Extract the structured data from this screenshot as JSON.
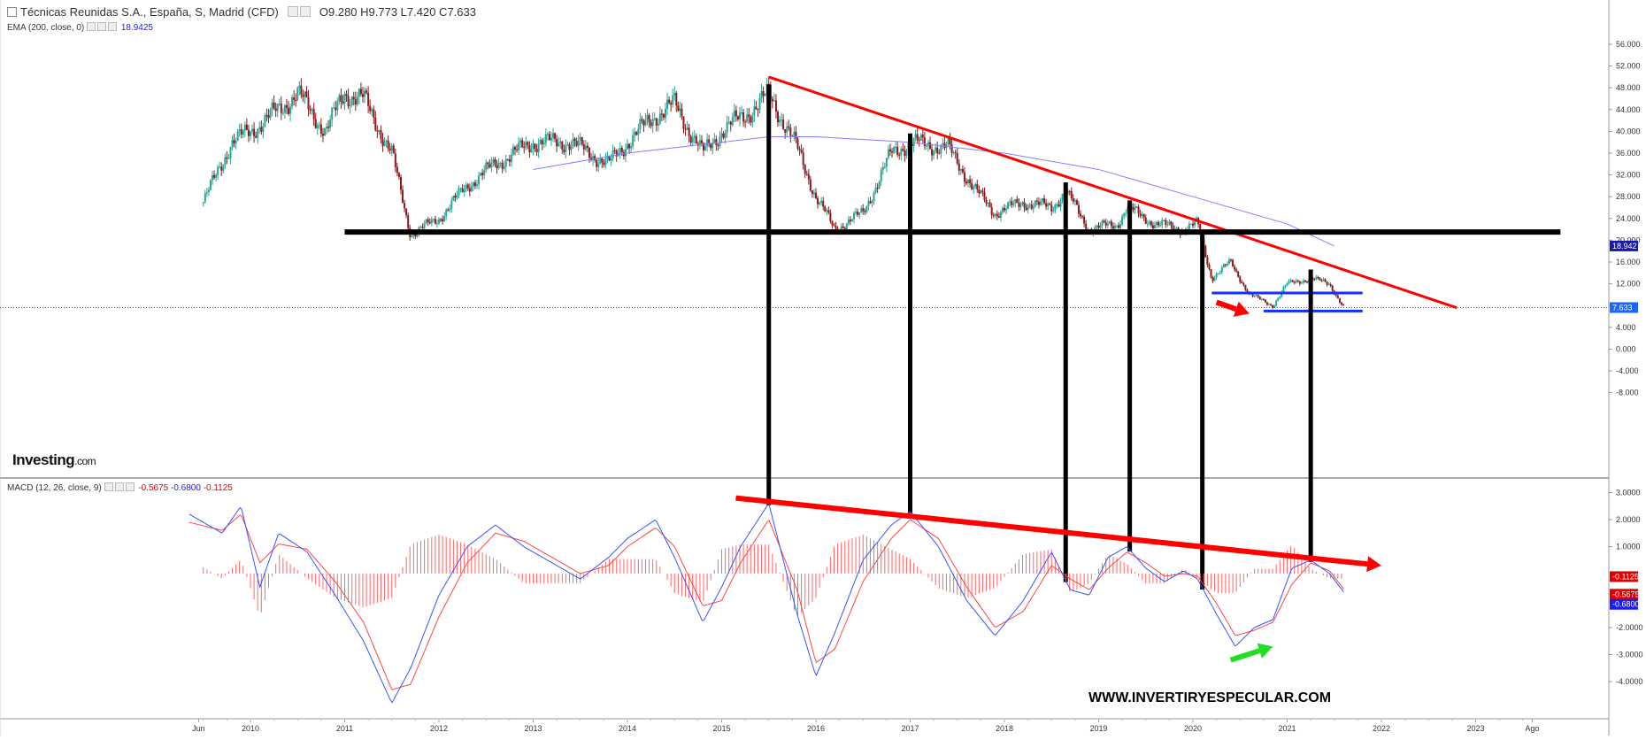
{
  "header": {
    "title": "Técnicas Reunidas S.A., España, S, Madrid (CFD)",
    "ohlc": "O9.280  H9.773  L7.420  C7.633",
    "ema_label": "EMA (200, close, 0)",
    "ema_value": "18.9425",
    "macd_label": "MACD (12, 26, close, 9)",
    "macd_values": [
      "-0.5675",
      "-0.6800",
      "-0.1125"
    ]
  },
  "logo": {
    "brand": "Investing",
    "suffix": ".com"
  },
  "watermark": "WWW.INVERTIRYESPECULAR.COM",
  "colors": {
    "candle_up": "#26a69a",
    "candle_down": "#8b1a1a",
    "ema": "#8080ff",
    "trend_red": "#ff0000",
    "support_black": "#000000",
    "range_blue": "#1030ff",
    "macd_line": "#3355ff",
    "signal_line": "#ff4444",
    "histogram": "#ff6666",
    "green_arrow": "#22dd22",
    "last_price_tag": "#1a66ff"
  },
  "chart_data": [
    {
      "type": "candlestick",
      "title": "Técnicas Reunidas S.A., España, S, Madrid (CFD)",
      "y_axis_ticks": [
        "56.000",
        "52.000",
        "48.000",
        "44.000",
        "40.000",
        "36.000",
        "32.000",
        "28.000",
        "24.000",
        "20.000",
        "16.000",
        "12.000",
        "8.000",
        "4.000",
        "0.000",
        "-4.000",
        "-8.000"
      ],
      "y_tick_values": [
        56,
        52,
        48,
        44,
        40,
        36,
        32,
        28,
        24,
        20,
        16,
        12,
        8,
        4,
        0,
        -4,
        -8
      ],
      "x_axis_ticks": [
        "Jun",
        "2010",
        "2011",
        "2012",
        "2013",
        "2014",
        "2015",
        "2016",
        "2017",
        "2018",
        "2019",
        "2020",
        "2021",
        "2022",
        "2023",
        "Ago"
      ],
      "x_tick_values": [
        2009.45,
        2010,
        2011,
        2012,
        2013,
        2014,
        2015,
        2016,
        2017,
        2018,
        2019,
        2020,
        2021,
        2022,
        2023,
        2023.6
      ],
      "price_keyframes": {
        "x": [
          2009.5,
          2009.8,
          2010.0,
          2010.3,
          2010.5,
          2010.8,
          2011.0,
          2011.2,
          2011.5,
          2011.7,
          2012.0,
          2012.3,
          2012.6,
          2013.0,
          2013.4,
          2013.8,
          2014.0,
          2014.3,
          2014.5,
          2014.8,
          2015.0,
          2015.4,
          2015.5,
          2015.8,
          2016.0,
          2016.2,
          2016.5,
          2016.8,
          2017.0,
          2017.4,
          2017.7,
          2017.9,
          2018.2,
          2018.5,
          2018.65,
          2018.9,
          2019.2,
          2019.3,
          2019.6,
          2019.9,
          2020.05,
          2020.2,
          2020.4,
          2020.6,
          2020.85,
          2021.0,
          2021.25,
          2021.45,
          2021.6
        ],
        "close": [
          27,
          38,
          40,
          44,
          47,
          40,
          47,
          46,
          36,
          21,
          24,
          30,
          34,
          38,
          38,
          34,
          38,
          43,
          45,
          36,
          40,
          45,
          47,
          37,
          28,
          22,
          25,
          36,
          38,
          37,
          29,
          25,
          27,
          26,
          29,
          22,
          23,
          26,
          23,
          22,
          23,
          13,
          16,
          10,
          8,
          12,
          13,
          12,
          7.633
        ]
      },
      "ema": {
        "x": [
          2009.5,
          2010.0,
          2011.0,
          2012.0,
          2013.0,
          2014.0,
          2015.0,
          2015.5,
          2016.0,
          2017.0,
          2018.0,
          2019.0,
          2020.0,
          2021.0,
          2021.5
        ],
        "values": [
          null,
          null,
          null,
          null,
          33,
          36,
          38,
          39,
          39,
          38,
          36,
          33,
          28,
          23,
          18.9425
        ]
      },
      "last_price": "7.633",
      "ema_last": "18.942",
      "annotations": [
        {
          "kind": "trendline",
          "color": "red",
          "from": [
            2015.5,
            50
          ],
          "to": [
            2022.8,
            7.6
          ]
        },
        {
          "kind": "support",
          "color": "black",
          "from": [
            2011.0,
            21.5
          ],
          "to": [
            2023.9,
            21.5
          ]
        },
        {
          "kind": "range_top",
          "color": "blue",
          "from": [
            2020.2,
            10.3
          ],
          "to": [
            2021.8,
            10.3
          ]
        },
        {
          "kind": "range_bottom",
          "color": "blue",
          "from": [
            2020.75,
            7.0
          ],
          "to": [
            2021.8,
            7.0
          ]
        },
        {
          "kind": "arrow_down",
          "color": "red",
          "from": [
            2020.25,
            8.6
          ],
          "to": [
            2020.6,
            6.5
          ]
        },
        {
          "kind": "vertical",
          "color": "black",
          "x": [
            2015.5,
            2017.0,
            2018.65,
            2019.33,
            2020.1,
            2021.25
          ]
        }
      ]
    },
    {
      "type": "line",
      "title": "MACD (12, 26, close, 9)",
      "y_axis_ticks": [
        "3.0000",
        "2.0000",
        "1.0000",
        "-2.0000",
        "-3.0000",
        "-4.0000"
      ],
      "y_tick_values": [
        3,
        2,
        1,
        -2,
        -3,
        -4
      ],
      "x": [
        2009.35,
        2009.7,
        2009.9,
        2010.1,
        2010.3,
        2010.6,
        2010.9,
        2011.2,
        2011.5,
        2011.7,
        2012.0,
        2012.3,
        2012.6,
        2012.9,
        2013.2,
        2013.5,
        2013.8,
        2014.0,
        2014.3,
        2014.5,
        2014.8,
        2015.0,
        2015.2,
        2015.5,
        2015.8,
        2016.0,
        2016.2,
        2016.5,
        2016.8,
        2017.0,
        2017.3,
        2017.6,
        2017.9,
        2018.2,
        2018.5,
        2018.7,
        2018.9,
        2019.1,
        2019.3,
        2019.5,
        2019.7,
        2019.9,
        2020.05,
        2020.25,
        2020.45,
        2020.65,
        2020.85,
        2021.05,
        2021.25,
        2021.45,
        2021.6
      ],
      "series": [
        {
          "name": "MACD",
          "values": [
            2.2,
            1.5,
            2.5,
            -0.5,
            1.5,
            0.8,
            -0.8,
            -2.5,
            -4.8,
            -3.5,
            -0.8,
            1.0,
            1.8,
            1.0,
            0.4,
            -0.2,
            0.6,
            1.3,
            2.0,
            0.6,
            -1.8,
            -0.5,
            1.0,
            2.6,
            -1.5,
            -3.8,
            -2.2,
            0.5,
            1.8,
            2.3,
            1.0,
            -1.0,
            -2.3,
            -1.0,
            0.8,
            -0.6,
            -0.8,
            0.6,
            1.0,
            0.2,
            -0.3,
            0.1,
            -0.2,
            -1.5,
            -2.7,
            -2.0,
            -1.7,
            0.2,
            0.5,
            0.0,
            -0.68
          ]
        },
        {
          "name": "Signal",
          "values": [
            1.9,
            1.6,
            2.2,
            0.4,
            1.1,
            0.9,
            -0.3,
            -1.8,
            -4.3,
            -4.1,
            -1.6,
            0.4,
            1.5,
            1.2,
            0.6,
            0.0,
            0.3,
            1.0,
            1.7,
            1.0,
            -1.2,
            -1.0,
            0.4,
            2.0,
            -0.6,
            -3.3,
            -2.8,
            -0.3,
            1.3,
            2.0,
            1.3,
            -0.5,
            -2.0,
            -1.4,
            0.3,
            -0.2,
            -0.6,
            0.2,
            0.8,
            0.4,
            -0.1,
            0.0,
            -0.1,
            -1.1,
            -2.3,
            -2.1,
            -1.8,
            -0.4,
            0.4,
            0.1,
            -0.57
          ]
        }
      ],
      "histogram_last": "-0.1125",
      "annotations": [
        {
          "kind": "trend_arrow",
          "color": "red",
          "from": [
            2015.15,
            2.8
          ],
          "to": [
            2022.0,
            0.3
          ]
        },
        {
          "kind": "arrow_up",
          "color": "green",
          "from": [
            2020.4,
            -3.2
          ],
          "to": [
            2020.85,
            -2.7
          ]
        }
      ]
    }
  ]
}
